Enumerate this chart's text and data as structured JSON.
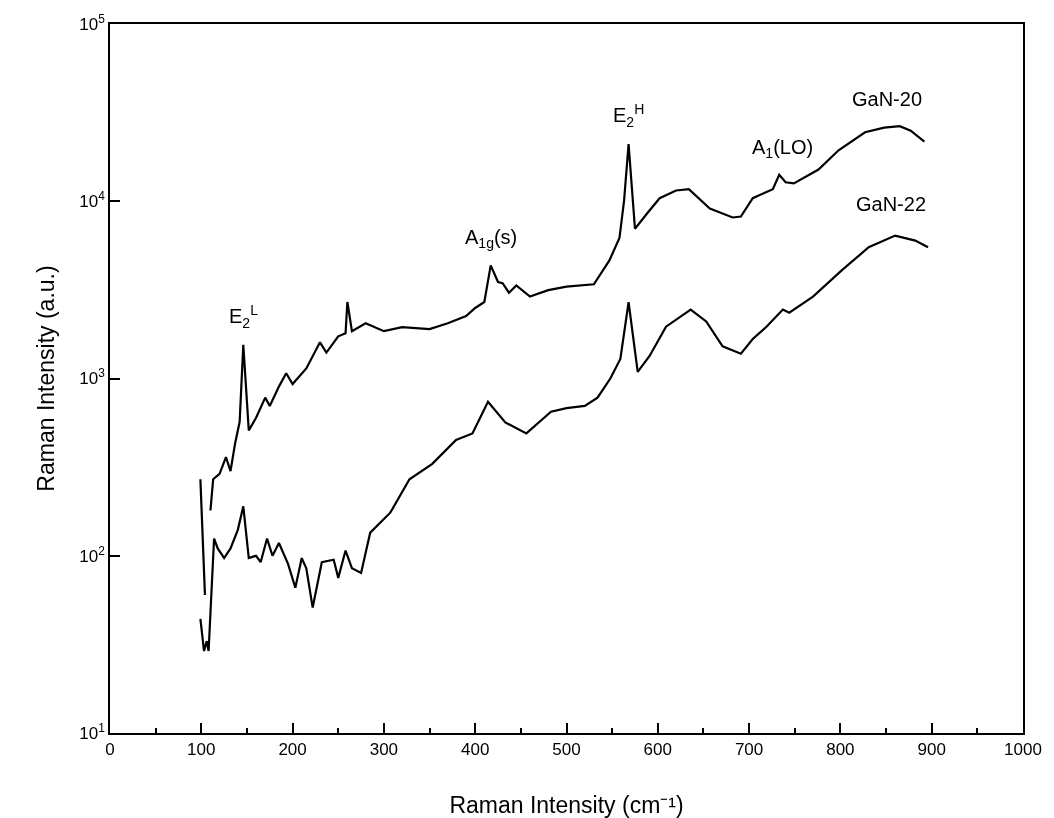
{
  "chart_data": {
    "type": "line",
    "xlabel": "Raman Intensity (cm⁻¹)",
    "ylabel": "Raman Intensity (a.u.)",
    "xlim": [
      0,
      1000
    ],
    "xticks": [
      0,
      100,
      200,
      300,
      400,
      500,
      600,
      700,
      800,
      900,
      1000
    ],
    "ylim": [
      10,
      100000
    ],
    "yticks": [
      {
        "value": 10,
        "label": "10$^{1}$"
      },
      {
        "value": 100,
        "label": "10$^{2}$"
      },
      {
        "value": 1000,
        "label": "10$^{3}$"
      },
      {
        "value": 10000,
        "label": "10$^{4}$"
      },
      {
        "value": 100000,
        "label": "10$^{5}$"
      }
    ],
    "log": "y",
    "grid": false,
    "legend": false,
    "marker": "none",
    "line_style": "solid",
    "series": [
      {
        "name": "GaN-20",
        "color": "#000000",
        "x": [
          99,
          104,
          107,
          110,
          113,
          120,
          127,
          132,
          137,
          142,
          146,
          152,
          160,
          170,
          175,
          185,
          193,
          200,
          215,
          230,
          237,
          250,
          258,
          260,
          265,
          280,
          300,
          320,
          350,
          370,
          390,
          400,
          410,
          417,
          425,
          430,
          437,
          445,
          460,
          480,
          500,
          530,
          547,
          558,
          563,
          568,
          575,
          588,
          602,
          620,
          634,
          657,
          682,
          691,
          704,
          726,
          733,
          740,
          749,
          776,
          798,
          827,
          848,
          865,
          877,
          892
        ],
        "values": [
          270,
          60,
          null,
          180,
          270,
          290,
          360,
          300,
          430,
          570,
          1550,
          510,
          600,
          780,
          700,
          900,
          1070,
          930,
          1140,
          1600,
          1400,
          1730,
          1800,
          2700,
          1850,
          2050,
          1850,
          1950,
          1900,
          2050,
          2250,
          2500,
          2700,
          4350,
          3500,
          3450,
          3050,
          3350,
          2900,
          3150,
          3300,
          3400,
          4640,
          6200,
          10000,
          21000,
          7000,
          8500,
          10400,
          11500,
          11700,
          9100,
          8100,
          8200,
          10400,
          11700,
          14100,
          12800,
          12600,
          15100,
          19400,
          24500,
          26000,
          26500,
          25000,
          21700
        ]
      },
      {
        "name": "GaN-22",
        "color": "#000000",
        "x": [
          99,
          103,
          106,
          108,
          114,
          118,
          125,
          132,
          140,
          146,
          152,
          160,
          165,
          172,
          178,
          185,
          195,
          203,
          210,
          215,
          222,
          232,
          245,
          250,
          258,
          265,
          275,
          285,
          307,
          328,
          353,
          379,
          397,
          414,
          433,
          456,
          483,
          500,
          520,
          534,
          548,
          559,
          568,
          578,
          591,
          609,
          636,
          653,
          671,
          691,
          704,
          719,
          737,
          744,
          770,
          802,
          831,
          860,
          882,
          896
        ],
        "values": [
          44,
          29,
          33,
          29,
          125,
          110,
          97,
          110,
          140,
          190,
          97,
          100,
          92,
          125,
          100,
          118,
          90,
          66,
          97,
          85,
          51,
          92,
          95,
          75,
          107,
          85,
          80,
          135,
          175,
          270,
          330,
          450,
          490,
          740,
          565,
          490,
          650,
          680,
          700,
          780,
          1000,
          1290,
          2700,
          1090,
          1340,
          1960,
          2450,
          2100,
          1520,
          1380,
          1670,
          1960,
          2450,
          2350,
          2900,
          4100,
          5500,
          6400,
          6000,
          5500
        ]
      }
    ],
    "annotations": [
      {
        "text": "E$_{2}$$^{L}$",
        "x": 146,
        "y": 1550
      },
      {
        "text": "A$_{1g}$(s)",
        "x": 417,
        "y": 4350
      },
      {
        "text": "E$_{2}$$^{H}$",
        "x": 568,
        "y": 21000
      },
      {
        "text": "A$_{1}$(LO)",
        "x": 737,
        "y": 14100
      }
    ]
  }
}
